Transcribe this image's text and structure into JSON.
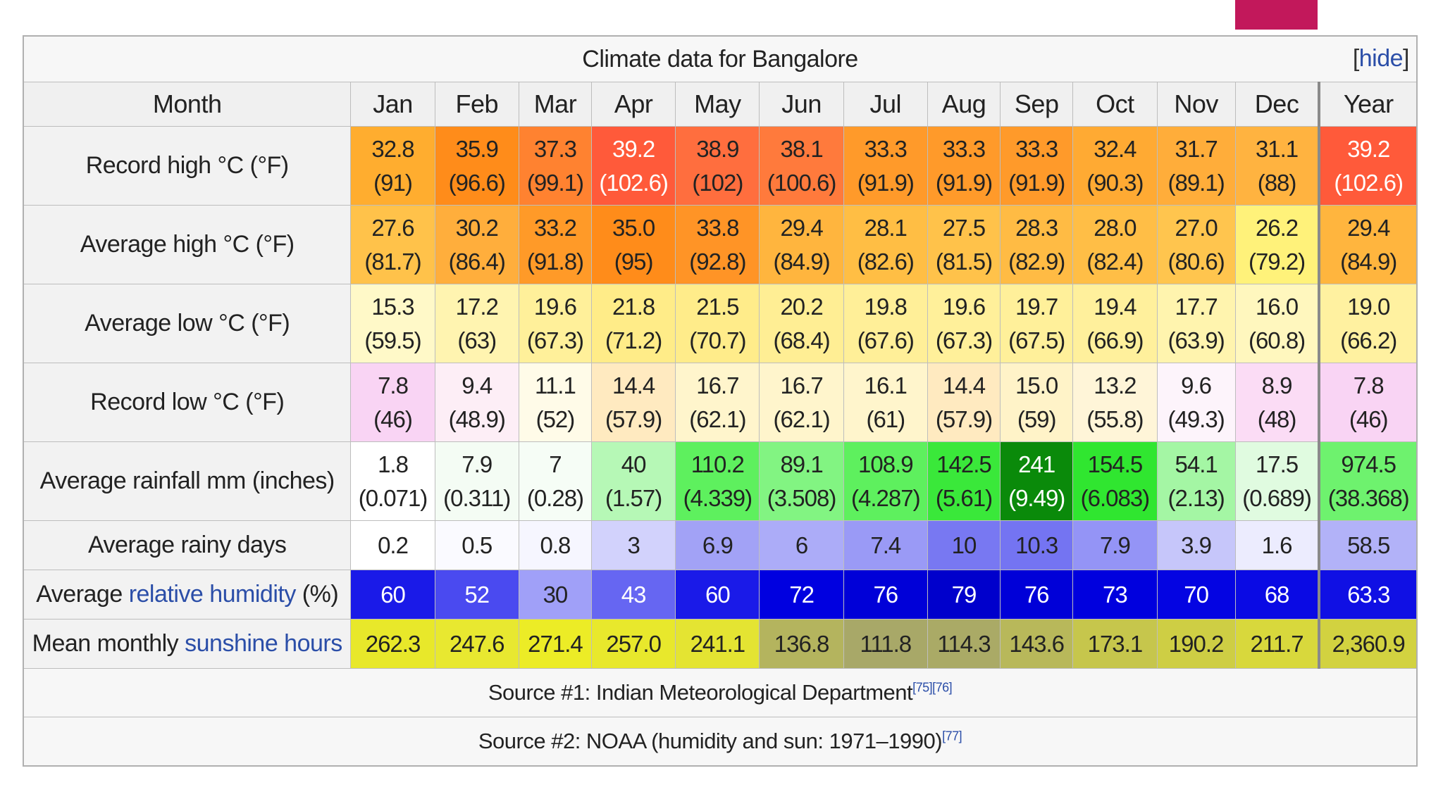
{
  "caption": "Climate data for Bangalore",
  "hide_label": "hide",
  "month_header": "Month",
  "months": [
    "Jan",
    "Feb",
    "Mar",
    "Apr",
    "May",
    "Jun",
    "Jul",
    "Aug",
    "Sep",
    "Oct",
    "Nov",
    "Dec"
  ],
  "year_header": "Year",
  "rows": [
    {
      "label": "Record high °C (°F)",
      "cells": [
        {
          "v": "32.8",
          "s": "(91)",
          "bg": "#ffad2f",
          "fg": "#222"
        },
        {
          "v": "35.9",
          "s": "(96.6)",
          "bg": "#ff8c1a",
          "fg": "#222"
        },
        {
          "v": "37.3",
          "s": "(99.1)",
          "bg": "#ff8230",
          "fg": "#222"
        },
        {
          "v": "39.2",
          "s": "(102.6)",
          "bg": "#ff5a3a",
          "fg": "#ffffff"
        },
        {
          "v": "38.9",
          "s": "(102)",
          "bg": "#ff6e3e",
          "fg": "#222"
        },
        {
          "v": "38.1",
          "s": "(100.6)",
          "bg": "#ff7a3c",
          "fg": "#222"
        },
        {
          "v": "33.3",
          "s": "(91.9)",
          "bg": "#ff9a2a",
          "fg": "#222"
        },
        {
          "v": "33.3",
          "s": "(91.9)",
          "bg": "#ff9a2a",
          "fg": "#222"
        },
        {
          "v": "33.3",
          "s": "(91.9)",
          "bg": "#ff9a2a",
          "fg": "#222"
        },
        {
          "v": "32.4",
          "s": "(90.3)",
          "bg": "#ffaa33",
          "fg": "#222"
        },
        {
          "v": "31.7",
          "s": "(89.1)",
          "bg": "#ffad3a",
          "fg": "#222"
        },
        {
          "v": "31.1",
          "s": "(88)",
          "bg": "#ffb340",
          "fg": "#222"
        }
      ],
      "year": {
        "v": "39.2",
        "s": "(102.6)",
        "bg": "#ff5a3a",
        "fg": "#ffffff"
      }
    },
    {
      "label": "Average high °C (°F)",
      "cells": [
        {
          "v": "27.6",
          "s": "(81.7)",
          "bg": "#ffc24a",
          "fg": "#222"
        },
        {
          "v": "30.2",
          "s": "(86.4)",
          "bg": "#ffae3c",
          "fg": "#222"
        },
        {
          "v": "33.2",
          "s": "(91.8)",
          "bg": "#ff9a28",
          "fg": "#222"
        },
        {
          "v": "35.0",
          "s": "(95)",
          "bg": "#ff8c1a",
          "fg": "#222"
        },
        {
          "v": "33.8",
          "s": "(92.8)",
          "bg": "#ff9426",
          "fg": "#222"
        },
        {
          "v": "29.4",
          "s": "(84.9)",
          "bg": "#ffb53e",
          "fg": "#222"
        },
        {
          "v": "28.1",
          "s": "(82.6)",
          "bg": "#ffbe44",
          "fg": "#222"
        },
        {
          "v": "27.5",
          "s": "(81.5)",
          "bg": "#ffc24a",
          "fg": "#222"
        },
        {
          "v": "28.3",
          "s": "(82.9)",
          "bg": "#ffbb44",
          "fg": "#222"
        },
        {
          "v": "28.0",
          "s": "(82.4)",
          "bg": "#ffbe46",
          "fg": "#222"
        },
        {
          "v": "27.0",
          "s": "(80.6)",
          "bg": "#ffc54e",
          "fg": "#222"
        },
        {
          "v": "26.2",
          "s": "(79.2)",
          "bg": "#fff27a",
          "fg": "#222"
        }
      ],
      "year": {
        "v": "29.4",
        "s": "(84.9)",
        "bg": "#ffb53e",
        "fg": "#222"
      }
    },
    {
      "label": "Average low °C (°F)",
      "cells": [
        {
          "v": "15.3",
          "s": "(59.5)",
          "bg": "#fff9c8",
          "fg": "#222"
        },
        {
          "v": "17.2",
          "s": "(63)",
          "bg": "#fff4b0",
          "fg": "#222"
        },
        {
          "v": "19.6",
          "s": "(67.3)",
          "bg": "#fff09a",
          "fg": "#222"
        },
        {
          "v": "21.8",
          "s": "(71.2)",
          "bg": "#ffec88",
          "fg": "#222"
        },
        {
          "v": "21.5",
          "s": "(70.7)",
          "bg": "#ffec8a",
          "fg": "#222"
        },
        {
          "v": "20.2",
          "s": "(68.4)",
          "bg": "#ffee94",
          "fg": "#222"
        },
        {
          "v": "19.8",
          "s": "(67.6)",
          "bg": "#ffef98",
          "fg": "#222"
        },
        {
          "v": "19.6",
          "s": "(67.3)",
          "bg": "#fff09a",
          "fg": "#222"
        },
        {
          "v": "19.7",
          "s": "(67.5)",
          "bg": "#fff09a",
          "fg": "#222"
        },
        {
          "v": "19.4",
          "s": "(66.9)",
          "bg": "#fff09c",
          "fg": "#222"
        },
        {
          "v": "17.7",
          "s": "(63.9)",
          "bg": "#fff4ae",
          "fg": "#222"
        },
        {
          "v": "16.0",
          "s": "(60.8)",
          "bg": "#fff7be",
          "fg": "#222"
        }
      ],
      "year": {
        "v": "19.0",
        "s": "(66.2)",
        "bg": "#fff1a0",
        "fg": "#222"
      }
    },
    {
      "label": "Record low °C (°F)",
      "cells": [
        {
          "v": "7.8",
          "s": "(46)",
          "bg": "#f9d4f4",
          "fg": "#222"
        },
        {
          "v": "9.4",
          "s": "(48.9)",
          "bg": "#fdeef6",
          "fg": "#222"
        },
        {
          "v": "11.1",
          "s": "(52)",
          "bg": "#fffbe8",
          "fg": "#222"
        },
        {
          "v": "14.4",
          "s": "(57.9)",
          "bg": "#ffeac0",
          "fg": "#222"
        },
        {
          "v": "16.7",
          "s": "(62.1)",
          "bg": "#fff5cc",
          "fg": "#222"
        },
        {
          "v": "16.7",
          "s": "(62.1)",
          "bg": "#fff5cc",
          "fg": "#222"
        },
        {
          "v": "16.1",
          "s": "(61)",
          "bg": "#fff5cc",
          "fg": "#222"
        },
        {
          "v": "14.4",
          "s": "(57.9)",
          "bg": "#ffeac0",
          "fg": "#222"
        },
        {
          "v": "15.0",
          "s": "(59)",
          "bg": "#fff3c8",
          "fg": "#222"
        },
        {
          "v": "13.2",
          "s": "(55.8)",
          "bg": "#fff5d8",
          "fg": "#222"
        },
        {
          "v": "9.6",
          "s": "(49.3)",
          "bg": "#fdf4fb",
          "fg": "#222"
        },
        {
          "v": "8.9",
          "s": "(48)",
          "bg": "#fbdcf5",
          "fg": "#222"
        }
      ],
      "year": {
        "v": "7.8",
        "s": "(46)",
        "bg": "#f9d4f4",
        "fg": "#222"
      }
    },
    {
      "label": "Average rainfall mm (inches)",
      "cells": [
        {
          "v": "1.8",
          "s": "(0.071)",
          "bg": "#ffffff",
          "fg": "#222"
        },
        {
          "v": "7.9",
          "s": "(0.311)",
          "bg": "#f4fcf4",
          "fg": "#222"
        },
        {
          "v": "7",
          "s": "(0.28)",
          "bg": "#f6fdf6",
          "fg": "#222"
        },
        {
          "v": "40",
          "s": "(1.57)",
          "bg": "#b6f8b6",
          "fg": "#222"
        },
        {
          "v": "110.2",
          "s": "(4.339)",
          "bg": "#5ef05e",
          "fg": "#222"
        },
        {
          "v": "89.1",
          "s": "(3.508)",
          "bg": "#82f482",
          "fg": "#222"
        },
        {
          "v": "108.9",
          "s": "(4.287)",
          "bg": "#5ef05e",
          "fg": "#222"
        },
        {
          "v": "142.5",
          "s": "(5.61)",
          "bg": "#3ae83a",
          "fg": "#222"
        },
        {
          "v": "241",
          "s": "(9.49)",
          "bg": "#0a8a0a",
          "fg": "#ffffff"
        },
        {
          "v": "154.5",
          "s": "(6.083)",
          "bg": "#30e630",
          "fg": "#222"
        },
        {
          "v": "54.1",
          "s": "(2.13)",
          "bg": "#a4f6a4",
          "fg": "#222"
        },
        {
          "v": "17.5",
          "s": "(0.689)",
          "bg": "#e0fbe0",
          "fg": "#222"
        }
      ],
      "year": {
        "v": "974.5",
        "s": "(38.368)",
        "bg": "#6ef26e",
        "fg": "#222"
      }
    },
    {
      "label": "Average rainy days",
      "cells": [
        {
          "v": "0.2",
          "bg": "#ffffff",
          "fg": "#222"
        },
        {
          "v": "0.5",
          "bg": "#fafaff",
          "fg": "#222"
        },
        {
          "v": "0.8",
          "bg": "#f6f6ff",
          "fg": "#222"
        },
        {
          "v": "3",
          "bg": "#d2d2fc",
          "fg": "#222"
        },
        {
          "v": "6.9",
          "bg": "#a2a2f6",
          "fg": "#222"
        },
        {
          "v": "6",
          "bg": "#acacf8",
          "fg": "#222"
        },
        {
          "v": "7.4",
          "bg": "#9a9af6",
          "fg": "#222"
        },
        {
          "v": "10",
          "bg": "#7878f2",
          "fg": "#222"
        },
        {
          "v": "10.3",
          "bg": "#7474f2",
          "fg": "#222"
        },
        {
          "v": "7.9",
          "bg": "#9494f6",
          "fg": "#222"
        },
        {
          "v": "3.9",
          "bg": "#c6c6fa",
          "fg": "#222"
        },
        {
          "v": "1.6",
          "bg": "#ececfe",
          "fg": "#222"
        }
      ],
      "year": {
        "v": "58.5",
        "bg": "#b2b2f8",
        "fg": "#222"
      }
    },
    {
      "label_parts": [
        "Average ",
        "relative humidity",
        " (%)"
      ],
      "cells": [
        {
          "v": "60",
          "bg": "#1a1ae8",
          "fg": "#ffffff"
        },
        {
          "v": "52",
          "bg": "#4a4af0",
          "fg": "#ffffff"
        },
        {
          "v": "30",
          "bg": "#a0a0f8",
          "fg": "#222"
        },
        {
          "v": "43",
          "bg": "#6666f2",
          "fg": "#ffffff"
        },
        {
          "v": "60",
          "bg": "#1a1ae8",
          "fg": "#ffffff"
        },
        {
          "v": "72",
          "bg": "#0000e0",
          "fg": "#ffffff"
        },
        {
          "v": "76",
          "bg": "#0000d8",
          "fg": "#ffffff"
        },
        {
          "v": "79",
          "bg": "#0000cc",
          "fg": "#ffffff"
        },
        {
          "v": "76",
          "bg": "#0000d8",
          "fg": "#ffffff"
        },
        {
          "v": "73",
          "bg": "#0000de",
          "fg": "#ffffff"
        },
        {
          "v": "70",
          "bg": "#0404e2",
          "fg": "#ffffff"
        },
        {
          "v": "68",
          "bg": "#0a0ae4",
          "fg": "#ffffff"
        }
      ],
      "year": {
        "v": "63.3",
        "bg": "#1010e4",
        "fg": "#ffffff"
      }
    },
    {
      "label_parts": [
        "Mean monthly ",
        "sunshine hours",
        ""
      ],
      "cells": [
        {
          "v": "262.3",
          "bg": "#e8e82a",
          "fg": "#222"
        },
        {
          "v": "247.6",
          "bg": "#e8e830",
          "fg": "#222"
        },
        {
          "v": "271.4",
          "bg": "#ecec26",
          "fg": "#222"
        },
        {
          "v": "257.0",
          "bg": "#e8e82c",
          "fg": "#222"
        },
        {
          "v": "241.1",
          "bg": "#e4e432",
          "fg": "#222"
        },
        {
          "v": "136.8",
          "bg": "#b4b45e",
          "fg": "#222"
        },
        {
          "v": "111.8",
          "bg": "#a8a868",
          "fg": "#222"
        },
        {
          "v": "114.3",
          "bg": "#aaaa66",
          "fg": "#222"
        },
        {
          "v": "143.6",
          "bg": "#b8b85a",
          "fg": "#222"
        },
        {
          "v": "173.1",
          "bg": "#c6c64c",
          "fg": "#222"
        },
        {
          "v": "190.2",
          "bg": "#cece44",
          "fg": "#222"
        },
        {
          "v": "211.7",
          "bg": "#d8d83c",
          "fg": "#222"
        }
      ],
      "year": {
        "v": "2,360.9",
        "bg": "#d2d240",
        "fg": "#222"
      }
    }
  ],
  "sources": [
    {
      "text": "Source #1: Indian Meteorological Department",
      "ref": "[75][76]"
    },
    {
      "text": "Source #2: NOAA (humidity and sun: 1971–1990)",
      "ref": "[77]"
    }
  ],
  "colors": {
    "accent_tab": "#c2185b",
    "link": "#2b4ea8"
  }
}
